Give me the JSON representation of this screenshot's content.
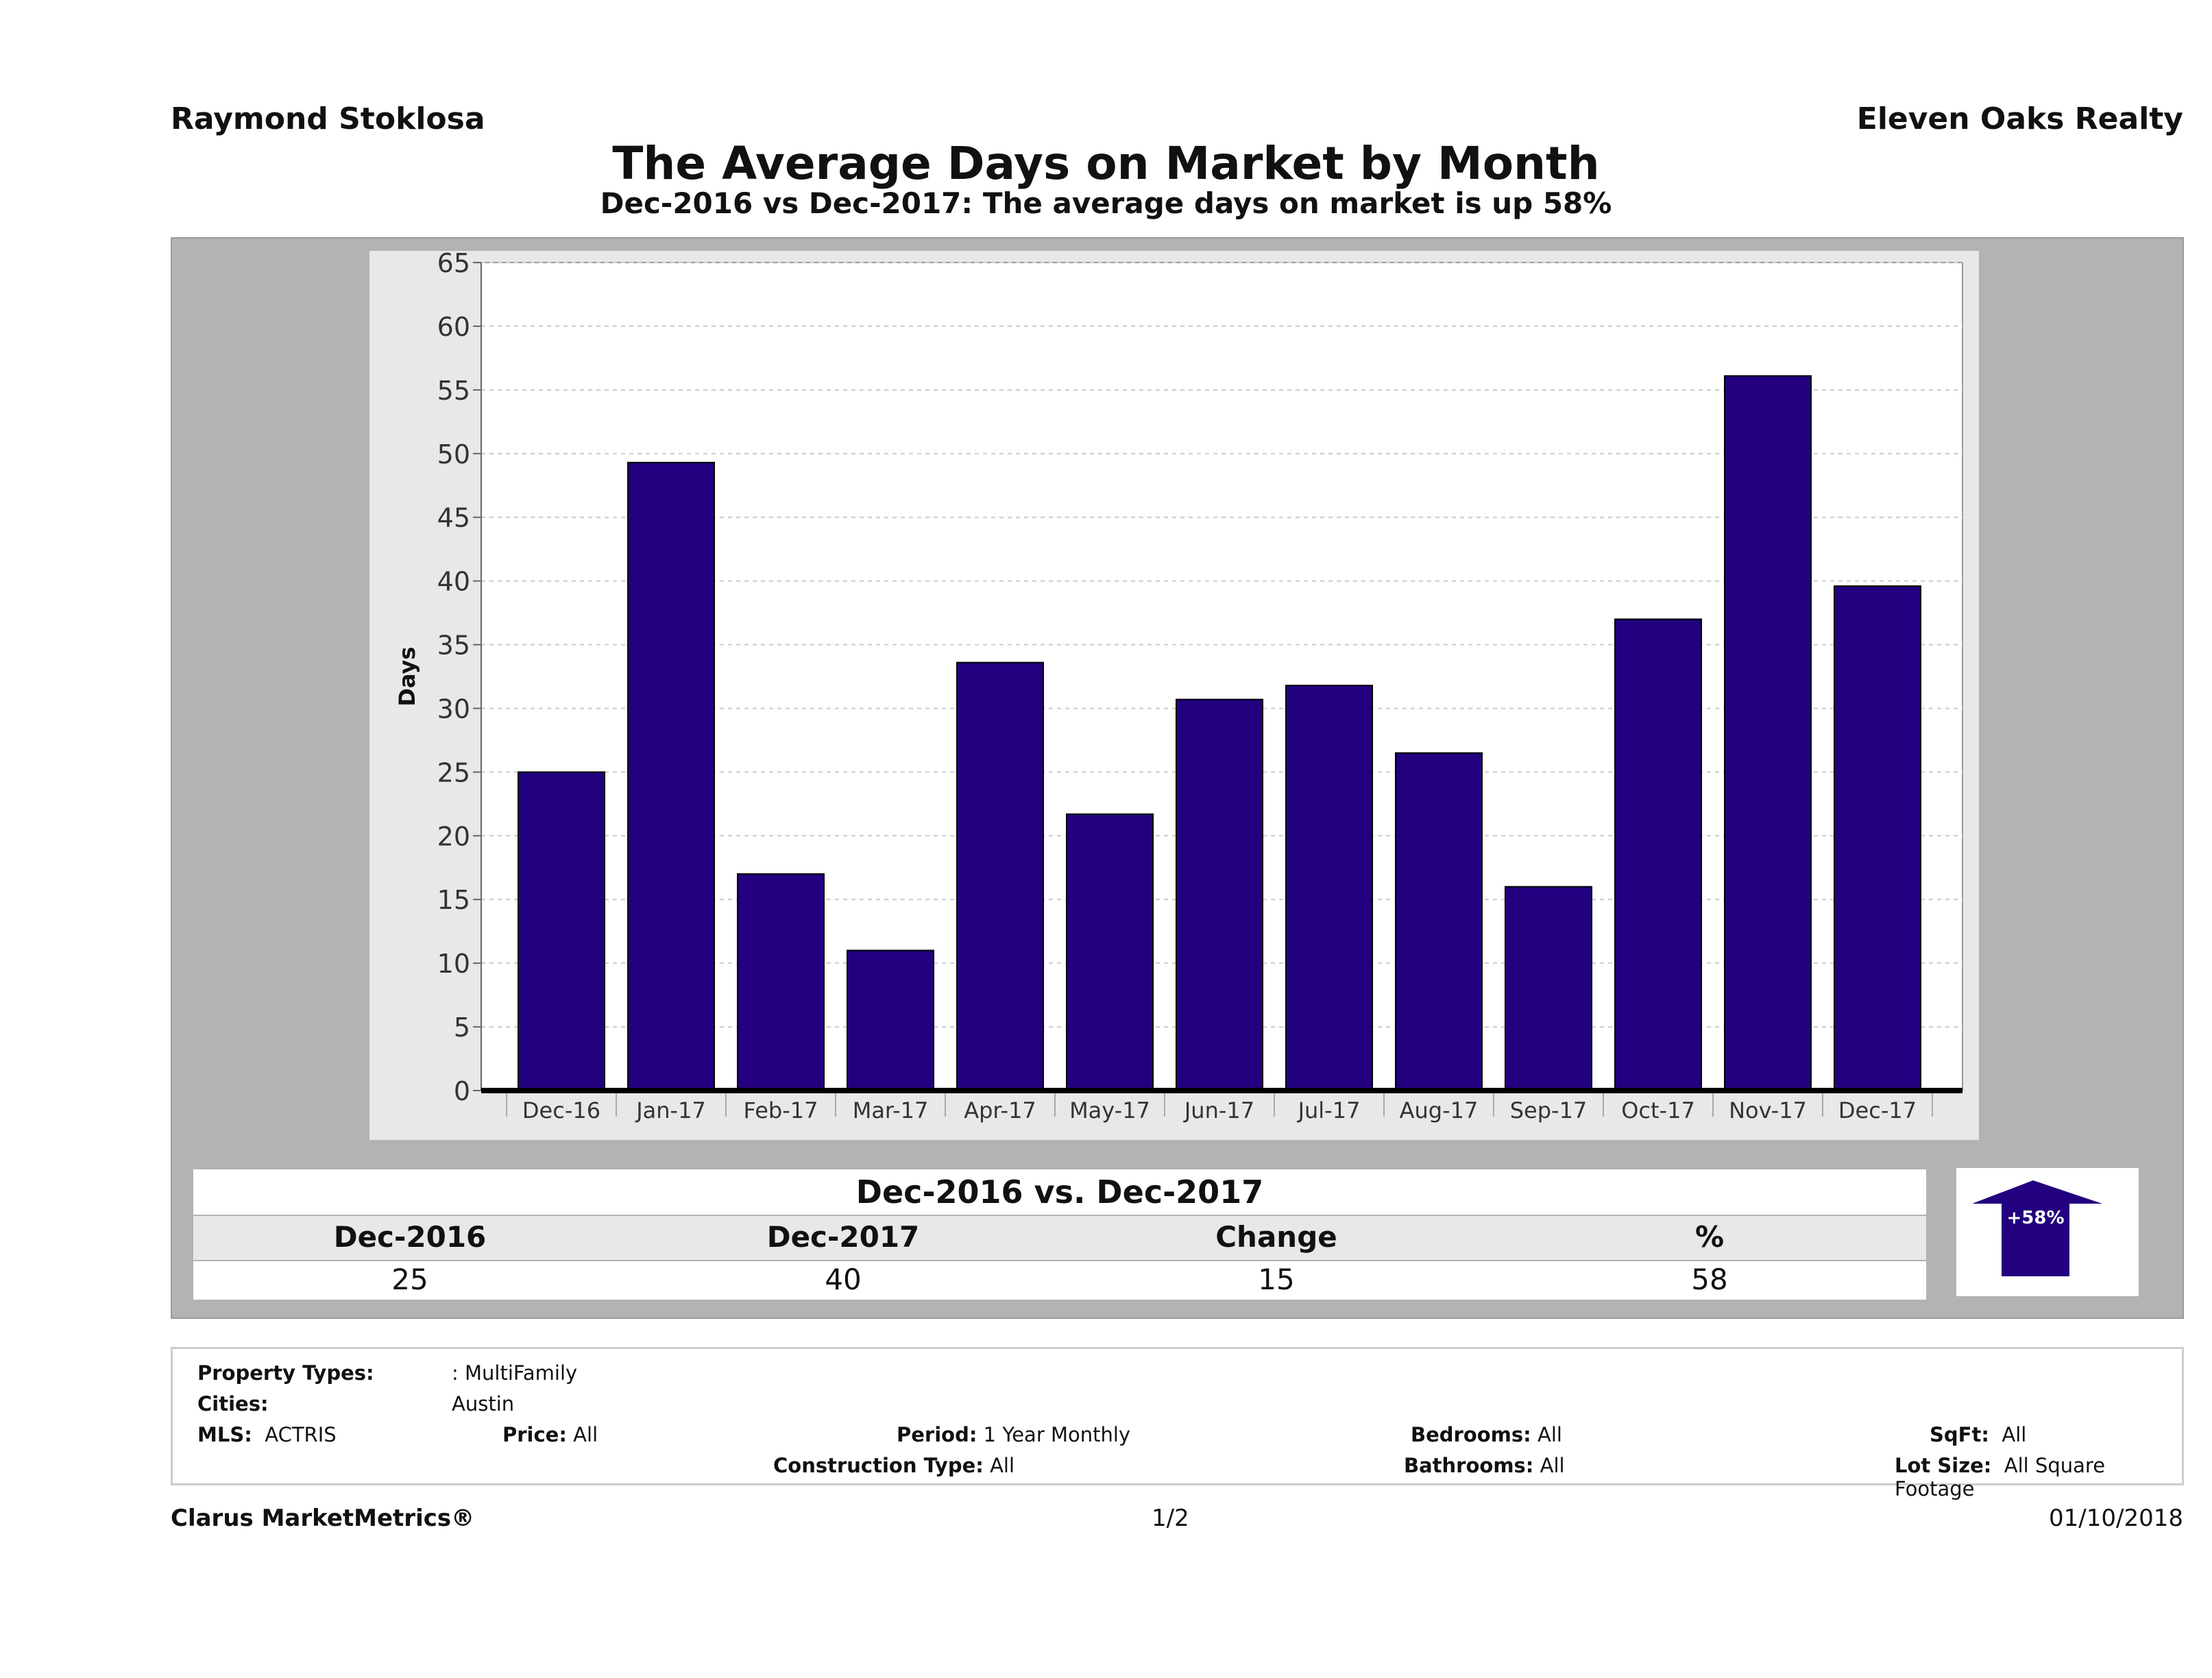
{
  "header": {
    "agent": "Raymond Stoklosa",
    "brokerage": "Eleven Oaks Realty"
  },
  "chart_data": {
    "type": "bar",
    "title": "The Average Days on Market by Month",
    "subtitle": "Dec-2016 vs Dec-2017: The average days on market is up 58%",
    "ylabel": "Days",
    "xlabel": "",
    "ylim": [
      0,
      65
    ],
    "yticks": [
      0,
      5,
      10,
      15,
      20,
      25,
      30,
      35,
      40,
      45,
      50,
      55,
      60,
      65
    ],
    "grid": true,
    "bar_color": "#23007f",
    "categories": [
      "Dec-16",
      "Jan-17",
      "Feb-17",
      "Mar-17",
      "Apr-17",
      "May-17",
      "Jun-17",
      "Jul-17",
      "Aug-17",
      "Sep-17",
      "Oct-17",
      "Nov-17",
      "Dec-17"
    ],
    "values": [
      25,
      49.3,
      17,
      11,
      33.6,
      21.7,
      30.7,
      31.8,
      26.5,
      16,
      37,
      56.1,
      39.6
    ]
  },
  "summary": {
    "title": "Dec-2016 vs. Dec-2017",
    "headers": [
      "Dec-2016",
      "Dec-2017",
      "Change",
      "%"
    ],
    "values": [
      "25",
      "40",
      "15",
      "58"
    ],
    "badge": "+58%",
    "direction": "up"
  },
  "criteria": {
    "property_types_label": "Property Types:",
    "property_types": ": MultiFamily",
    "cities_label": "Cities:",
    "cities": "Austin",
    "mls_label": "MLS:",
    "mls": "ACTRIS",
    "price_label": "Price:",
    "price": "All",
    "period_label": "Period:",
    "period": "1 Year Monthly",
    "construction_label": "Construction Type:",
    "construction": "All",
    "bedrooms_label": "Bedrooms:",
    "bedrooms": "All",
    "bathrooms_label": "Bathrooms:",
    "bathrooms": "All",
    "sqft_label": "SqFt:",
    "sqft": "All",
    "lot_label": "Lot Size:",
    "lot": "All Square Footage"
  },
  "footer": {
    "brand": "Clarus MarketMetrics®",
    "page": "1/2",
    "date": "01/10/2018"
  }
}
